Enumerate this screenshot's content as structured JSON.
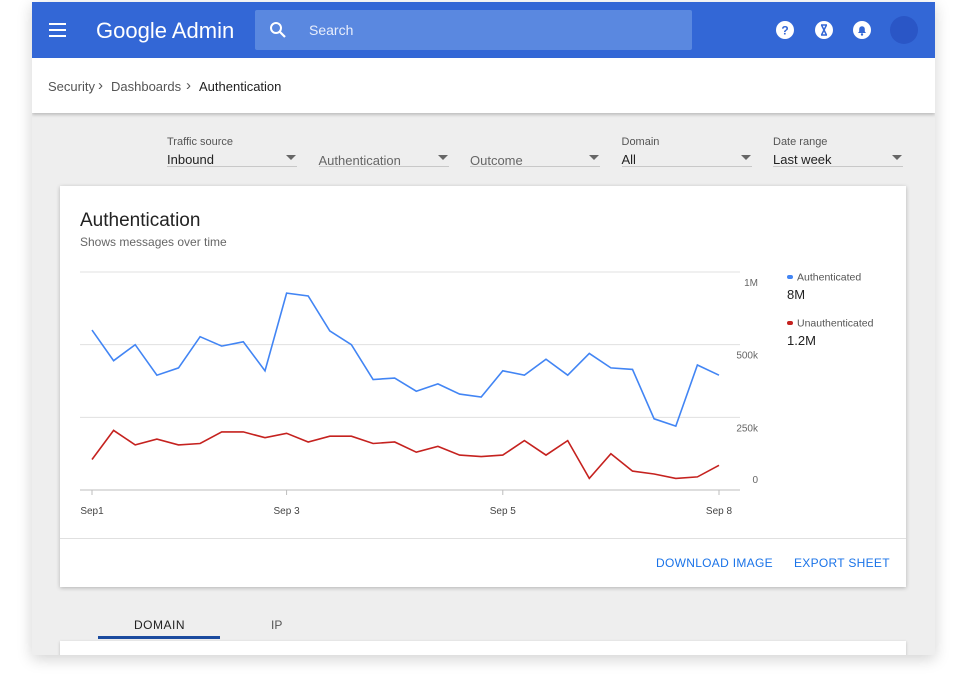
{
  "app": {
    "name": "Google Admin",
    "search_placeholder": "Search"
  },
  "breadcrumbs": [
    "Security",
    "Dashboards",
    "Authentication"
  ],
  "filters": [
    {
      "label": "Traffic source",
      "value": "Inbound"
    },
    {
      "value": "Authentication"
    },
    {
      "value": "Outcome"
    },
    {
      "label": "Domain",
      "value": "All"
    },
    {
      "label": "Date range",
      "value": "Last week"
    }
  ],
  "card_actions": [
    "DOWNLOAD IMAGE",
    "EXPORT SHEET"
  ],
  "tabs": [
    "DOMAIN",
    "IP"
  ],
  "chart_data": {
    "type": "line",
    "title": "Authentication",
    "subtitle": "Shows messages over time",
    "categories": [
      "Sep1",
      null,
      null,
      null,
      null,
      null,
      null,
      null,
      null,
      "Sep 3",
      null,
      null,
      null,
      null,
      null,
      null,
      null,
      null,
      null,
      "Sep 5",
      null,
      null,
      null,
      null,
      null,
      null,
      null,
      null,
      null,
      "Sep 8"
    ],
    "series": [
      {
        "name": "Authenticated",
        "color": "#4285f4",
        "total": {
          "value": 8000000,
          "label": "8M"
        },
        "values": [
          600000,
          445000,
          500000,
          395000,
          420000,
          555000,
          495000,
          520000,
          410000,
          855000,
          835000,
          595000,
          500000,
          380000,
          385000,
          340000,
          365000,
          330000,
          320000,
          410000,
          395000,
          450000,
          395000,
          470000,
          420000,
          415000,
          245000,
          220000,
          430000,
          395000
        ]
      },
      {
        "name": "Unauthenticated",
        "color": "#c5221f",
        "total": {
          "value": 1200000,
          "label": "1.2M"
        },
        "values": [
          105000,
          205000,
          155000,
          175000,
          155000,
          160000,
          200000,
          200000,
          180000,
          195000,
          165000,
          185000,
          185000,
          160000,
          165000,
          130000,
          150000,
          120000,
          115000,
          120000,
          170000,
          120000,
          170000,
          40000,
          125000,
          65000,
          55000,
          40000,
          45000,
          85000
        ]
      }
    ],
    "ylim": [
      0,
      1000000
    ],
    "yticks": [
      0,
      {
        "value": 250000,
        "label": "250k"
      },
      {
        "value": 500000,
        "label": "500k"
      },
      {
        "value": 1000000,
        "label": "1M"
      }
    ],
    "grid": true
  }
}
